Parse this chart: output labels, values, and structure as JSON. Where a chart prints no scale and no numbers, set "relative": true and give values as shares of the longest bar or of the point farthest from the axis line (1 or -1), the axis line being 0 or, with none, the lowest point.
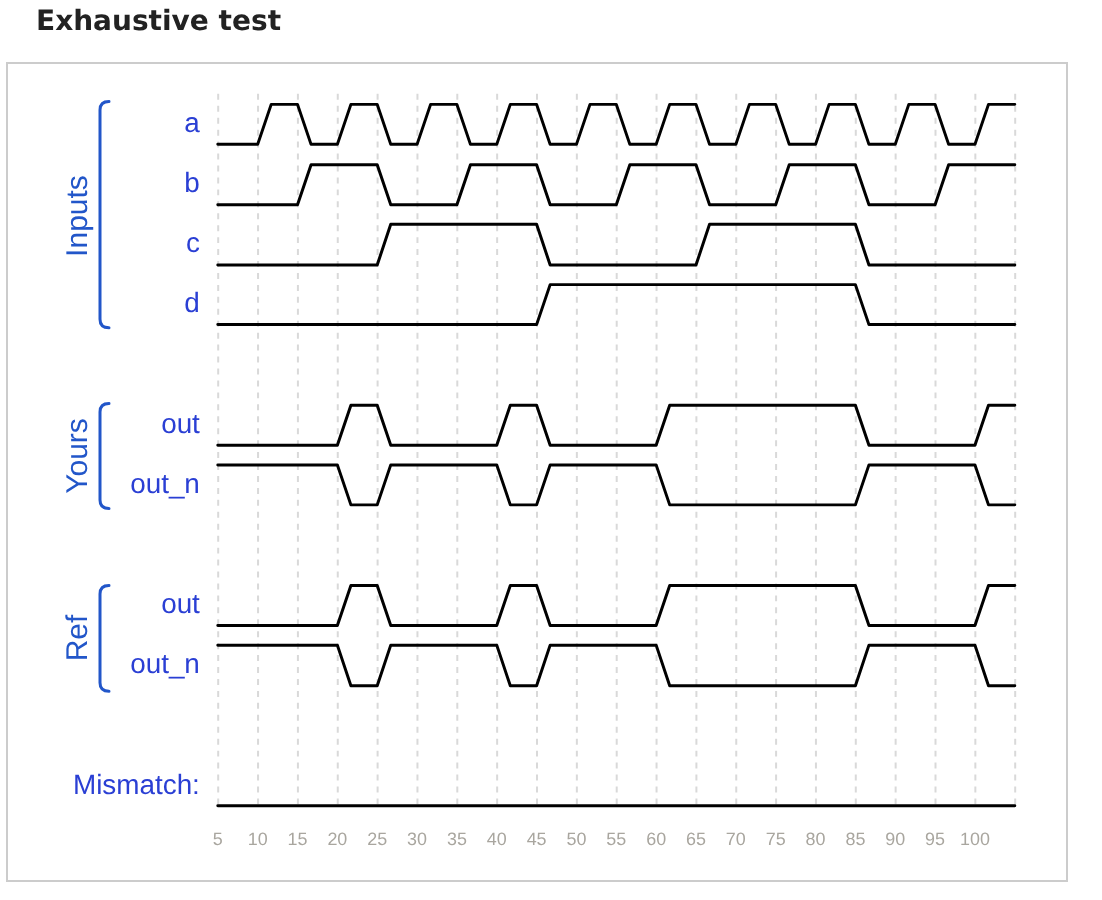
{
  "chart_data": {
    "type": "line",
    "title": "Exhaustive test",
    "relative": true,
    "xlim": [
      5,
      105
    ],
    "xticks": [
      5,
      10,
      15,
      20,
      25,
      30,
      35,
      40,
      45,
      50,
      55,
      60,
      65,
      70,
      75,
      80,
      85,
      90,
      95,
      100,
      {
        "value": 105,
        "label": null
      }
    ],
    "grid": "x",
    "annotations": [
      "Inputs",
      "Yours",
      "Ref"
    ],
    "series": [
      {
        "name": "a",
        "color": "#000000",
        "x": [
          5,
          10,
          11.7,
          15,
          16.7,
          20,
          21.7,
          25,
          26.7,
          30,
          31.7,
          35,
          36.7,
          40,
          41.7,
          45,
          46.7,
          50,
          51.7,
          55,
          56.7,
          60,
          61.7,
          65,
          66.7,
          70,
          71.7,
          75,
          76.7,
          80,
          81.7,
          85,
          86.7,
          90,
          91.7,
          95,
          96.7,
          100,
          101.7,
          105
        ],
        "values": [
          0.943,
          0.943,
          1,
          1,
          0.943,
          0.943,
          1,
          1,
          0.943,
          0.943,
          1,
          1,
          0.943,
          0.943,
          1,
          1,
          0.943,
          0.943,
          1,
          1,
          0.943,
          0.943,
          1,
          1,
          0.943,
          0.943,
          1,
          1,
          0.943,
          0.943,
          1,
          1,
          0.943,
          0.943,
          1,
          1,
          0.943,
          0.943,
          1,
          1
        ]
      },
      {
        "name": "b",
        "color": "#000000",
        "x": [
          5,
          15,
          16.7,
          25,
          26.7,
          35,
          36.7,
          45,
          46.7,
          55,
          56.7,
          65,
          66.7,
          75,
          76.7,
          85,
          86.7,
          95,
          96.7,
          105
        ],
        "values": [
          0.857,
          0.857,
          0.914,
          0.914,
          0.857,
          0.857,
          0.914,
          0.914,
          0.857,
          0.857,
          0.914,
          0.914,
          0.857,
          0.857,
          0.914,
          0.914,
          0.857,
          0.857,
          0.914,
          0.914
        ]
      },
      {
        "name": "c",
        "color": "#000000",
        "x": [
          5,
          25,
          26.7,
          45,
          46.7,
          65,
          66.7,
          85,
          86.7,
          105
        ],
        "values": [
          0.771,
          0.771,
          0.829,
          0.829,
          0.771,
          0.771,
          0.829,
          0.829,
          0.771,
          0.771
        ]
      },
      {
        "name": "d",
        "color": "#000000",
        "x": [
          5,
          45,
          46.7,
          85,
          86.7,
          105
        ],
        "values": [
          0.686,
          0.686,
          0.743,
          0.743,
          0.686,
          0.686
        ]
      },
      {
        "name": "out",
        "color": "#000000",
        "x": [
          5,
          20,
          21.7,
          25,
          26.7,
          40,
          41.7,
          45,
          46.7,
          60,
          61.7,
          85,
          86.7,
          100,
          101.7,
          105
        ],
        "values": [
          0.514,
          0.514,
          0.571,
          0.571,
          0.514,
          0.514,
          0.571,
          0.571,
          0.514,
          0.514,
          0.571,
          0.571,
          0.514,
          0.514,
          0.571,
          0.571
        ]
      },
      {
        "name": "out_n",
        "color": "#000000",
        "x": [
          5,
          20,
          21.7,
          25,
          26.7,
          40,
          41.7,
          45,
          46.7,
          60,
          61.7,
          85,
          86.7,
          100,
          101.7,
          105
        ],
        "values": [
          0.486,
          0.486,
          0.429,
          0.429,
          0.486,
          0.486,
          0.429,
          0.429,
          0.486,
          0.486,
          0.429,
          0.429,
          0.486,
          0.486,
          0.429,
          0.429
        ]
      },
      {
        "name": "out",
        "color": "#000000",
        "x": [
          5,
          20,
          21.7,
          25,
          26.7,
          40,
          41.7,
          45,
          46.7,
          60,
          61.7,
          85,
          86.7,
          100,
          101.7,
          105
        ],
        "values": [
          0.257,
          0.257,
          0.314,
          0.314,
          0.257,
          0.257,
          0.314,
          0.314,
          0.257,
          0.257,
          0.314,
          0.314,
          0.257,
          0.257,
          0.314,
          0.314
        ]
      },
      {
        "name": "out_n",
        "color": "#000000",
        "x": [
          5,
          20,
          21.7,
          25,
          26.7,
          40,
          41.7,
          45,
          46.7,
          60,
          61.7,
          85,
          86.7,
          100,
          101.7,
          105
        ],
        "values": [
          0.229,
          0.229,
          0.171,
          0.171,
          0.229,
          0.229,
          0.171,
          0.171,
          0.229,
          0.229,
          0.171,
          0.171,
          0.229,
          0.229,
          0.171,
          0.171
        ]
      },
      {
        "name": "Mismatch:",
        "color": "#000000",
        "x": [
          5,
          105
        ],
        "values": [
          0,
          0
        ]
      }
    ]
  }
}
